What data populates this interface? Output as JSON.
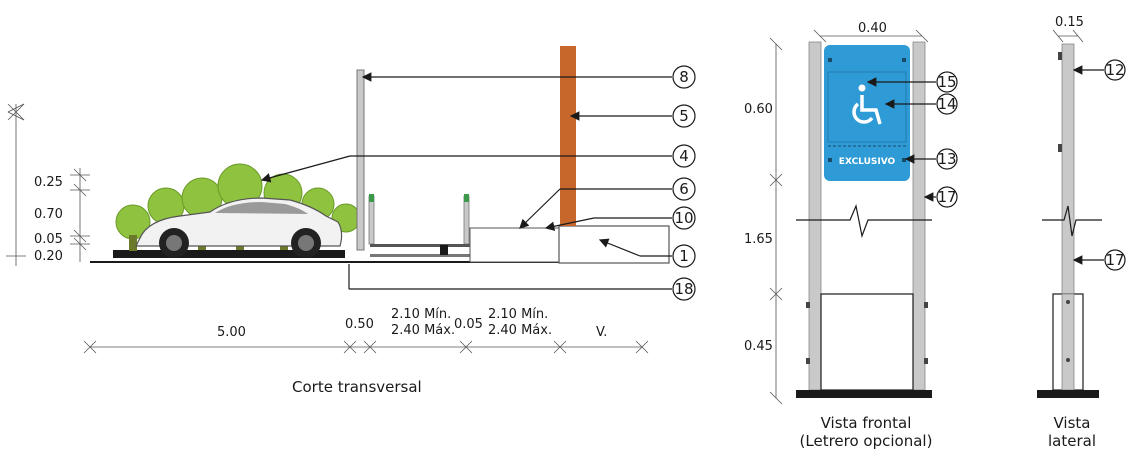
{
  "cross_section": {
    "caption": "Corte transversal",
    "vertical_dims": [
      "0.25",
      "0.70",
      "0.05",
      "0.20"
    ],
    "horizontal_dims": {
      "d1": "5.00",
      "d2": "0.50",
      "d3_line1": "2.10 Mín.",
      "d3_line2": "2.40 Máx.",
      "d4": "0.05",
      "d5_line1": "2.10 Mín.",
      "d5_line2": "2.40 Máx.",
      "d6": "V."
    },
    "callouts": [
      "8",
      "5",
      "4",
      "6",
      "10",
      "1",
      "18"
    ]
  },
  "front_view": {
    "caption_line1": "Vista frontal",
    "caption_line2": "(Letrero opcional)",
    "width_dim": "0.40",
    "vertical_dims": [
      "0.60",
      "1.65",
      "0.45"
    ],
    "sign_label": "EXCLUSIVO",
    "callouts": [
      "15",
      "14",
      "13",
      "17"
    ]
  },
  "side_view": {
    "caption_line1": "Vista",
    "caption_line2": "lateral",
    "width_dim": "0.15",
    "callouts": [
      "12",
      "17"
    ]
  },
  "colors": {
    "sign_blue": "#2e9bd6",
    "post_orange": "#c8672c",
    "tree_green": "#8fc23f",
    "post_gray": "#c9c9c9",
    "line": "#1a1a1a"
  }
}
